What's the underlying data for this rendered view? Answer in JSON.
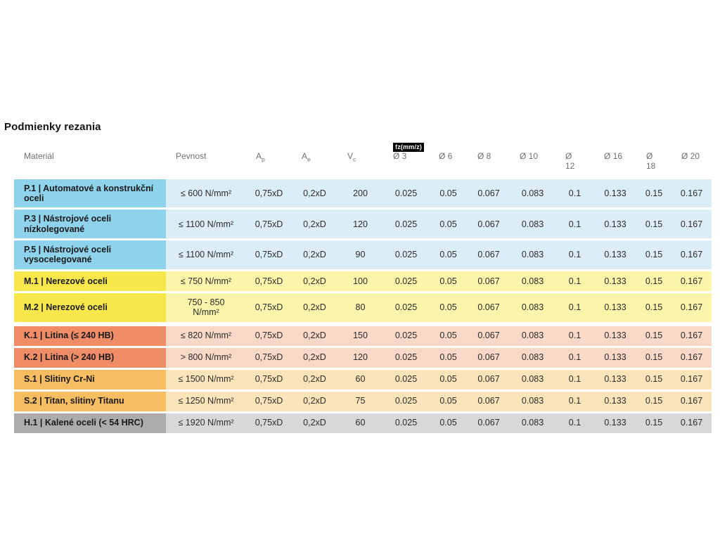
{
  "page": {
    "title": "Podmienky rezania"
  },
  "colors": {
    "p": {
      "label_bg": "#8FD2EC",
      "row_bg": "#DBEEF8"
    },
    "m": {
      "label_bg": "#F7E74B",
      "row_bg": "#FBF5AC"
    },
    "k": {
      "label_bg": "#EF8D68",
      "row_bg": "#F8D8C7"
    },
    "s": {
      "label_bg": "#F7BD62",
      "row_bg": "#FBE4BA"
    },
    "h": {
      "label_bg": "#ACACAC",
      "row_bg": "#D8D8DA"
    },
    "badge_bg": "#000000",
    "badge_text": "#FFFFFF"
  },
  "table": {
    "columns": [
      {
        "label": "Materiál"
      },
      {
        "label": "Pevnost"
      },
      {
        "label": "A",
        "sub": "p"
      },
      {
        "label": "A",
        "sub": "e"
      },
      {
        "label": "V",
        "sub": "c"
      },
      {
        "label": "Ø 3",
        "badge": "fz(mm/z)"
      },
      {
        "label": "Ø 6"
      },
      {
        "label": "Ø 8"
      },
      {
        "label": "Ø 10"
      },
      {
        "label": "Ø\n12"
      },
      {
        "label": "Ø 16"
      },
      {
        "label": "Ø\n18"
      },
      {
        "label": "Ø 20"
      }
    ],
    "rows": [
      {
        "group": "p",
        "material": "P.1 | Automatové a konstrukční oceli",
        "values": [
          "≤ 600 N/mm²",
          "0,75xD",
          "0,2xD",
          "200",
          "0.025",
          "0.05",
          "0.067",
          "0.083",
          "0.1",
          "0.133",
          "0.15",
          "0.167"
        ]
      },
      {
        "group": "p",
        "material": "P.3 | Nástrojové oceli nízkolegované",
        "values": [
          "≤ 1100 N/mm²",
          "0,75xD",
          "0,2xD",
          "120",
          "0.025",
          "0.05",
          "0.067",
          "0.083",
          "0.1",
          "0.133",
          "0.15",
          "0.167"
        ]
      },
      {
        "group": "p",
        "material": "P.5 | Nástrojové oceli\nvysocelegované",
        "values": [
          "≤ 1100 N/mm²",
          "0,75xD",
          "0,2xD",
          "90",
          "0.025",
          "0.05",
          "0.067",
          "0.083",
          "0.1",
          "0.133",
          "0.15",
          "0.167"
        ]
      },
      {
        "group": "m",
        "material": "M.1 | Nerezové oceli",
        "values": [
          "≤ 750 N/mm²",
          "0,75xD",
          "0,2xD",
          "100",
          "0.025",
          "0.05",
          "0.067",
          "0.083",
          "0.1",
          "0.133",
          "0.15",
          "0.167"
        ]
      },
      {
        "group": "m",
        "material": "M.2 | Nerezové oceli",
        "values": [
          "750 - 850\nN/mm²",
          "0,75xD",
          "0,2xD",
          "80",
          "0.025",
          "0.05",
          "0.067",
          "0.083",
          "0.1",
          "0.133",
          "0.15",
          "0.167"
        ]
      },
      {
        "group": "k",
        "spacer_before": true,
        "material": "K.1 | Litina (≤ 240 HB)",
        "values": [
          "≤ 820 N/mm²",
          "0,75xD",
          "0,2xD",
          "150",
          "0.025",
          "0.05",
          "0.067",
          "0.083",
          "0.1",
          "0.133",
          "0.15",
          "0.167"
        ]
      },
      {
        "group": "k",
        "material": "K.2 | Litina (> 240 HB)",
        "values": [
          "> 800 N/mm²",
          "0,75xD",
          "0,2xD",
          "120",
          "0.025",
          "0.05",
          "0.067",
          "0.083",
          "0.1",
          "0.133",
          "0.15",
          "0.167"
        ]
      },
      {
        "group": "s",
        "material": "S.1 | Slitiny Cr-Ni",
        "values": [
          "≤ 1500 N/mm²",
          "0,75xD",
          "0,2xD",
          "60",
          "0.025",
          "0.05",
          "0.067",
          "0.083",
          "0.1",
          "0.133",
          "0.15",
          "0.167"
        ]
      },
      {
        "group": "s",
        "material": "S.2 | Titan, slitiny Titanu",
        "values": [
          "≤ 1250 N/mm²",
          "0,75xD",
          "0,2xD",
          "75",
          "0.025",
          "0.05",
          "0.067",
          "0.083",
          "0.1",
          "0.133",
          "0.15",
          "0.167"
        ]
      },
      {
        "group": "h",
        "material": "H.1 | Kalené oceli (< 54 HRC)",
        "values": [
          "≤ 1920 N/mm²",
          "0,75xD",
          "0,2xD",
          "60",
          "0.025",
          "0.05",
          "0.067",
          "0.083",
          "0.1",
          "0.133",
          "0.15",
          "0.167"
        ]
      }
    ]
  }
}
